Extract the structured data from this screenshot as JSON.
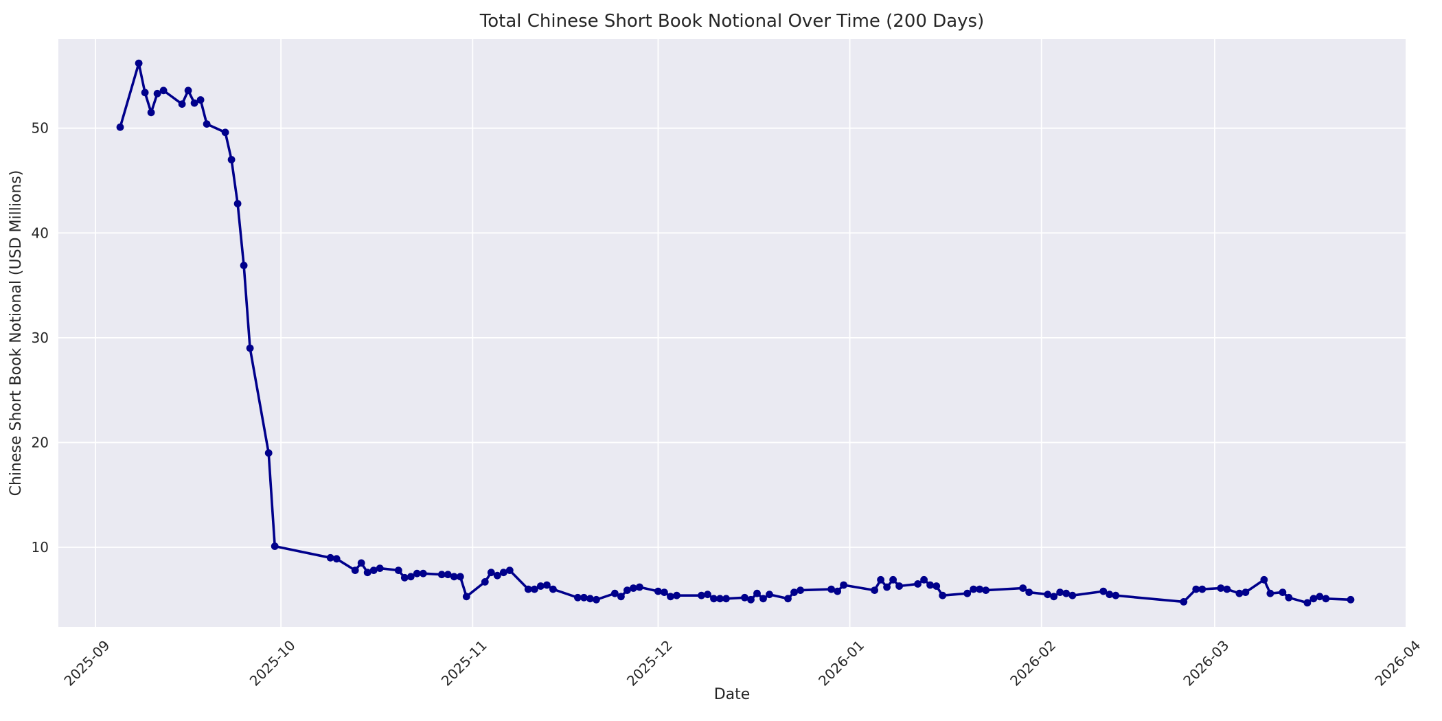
{
  "chart_data": {
    "type": "line",
    "title": "Total Chinese Short Book Notional Over Time (200 Days)",
    "xlabel": "Date",
    "ylabel": "Chinese Short Book Notional (USD Millions)",
    "legend": "none",
    "grid": true,
    "style": "seaborn-darkgrid",
    "colors": {
      "figure_background": "#FFFFFF",
      "axes_background": "#EAEAF2",
      "grid_color": "#FFFFFF",
      "line_color": "#00008B",
      "text_color": "#262626"
    },
    "x_ticks": [
      {
        "label": "2025-09",
        "date": "2025-09-01"
      },
      {
        "label": "2025-10",
        "date": "2025-10-01"
      },
      {
        "label": "2025-11",
        "date": "2025-11-01"
      },
      {
        "label": "2025-12",
        "date": "2025-12-01"
      },
      {
        "label": "2026-01",
        "date": "2026-01-01"
      },
      {
        "label": "2026-02",
        "date": "2026-02-01"
      },
      {
        "label": "2026-03",
        "date": "2026-03-01"
      },
      {
        "label": "2026-04",
        "date": "2026-04-01"
      }
    ],
    "y_ticks": [
      10,
      20,
      30,
      40,
      50
    ],
    "ylim": [
      2.4,
      58.5
    ],
    "x_domain": [
      "2025-08-26",
      "2026-04-01"
    ],
    "marker": "circle",
    "points": [
      [
        "2025-09-05",
        50.1
      ],
      [
        "2025-09-08",
        56.2
      ],
      [
        "2025-09-09",
        53.4
      ],
      [
        "2025-09-10",
        51.5
      ],
      [
        "2025-09-11",
        53.3
      ],
      [
        "2025-09-12",
        53.6
      ],
      [
        "2025-09-15",
        52.3
      ],
      [
        "2025-09-16",
        53.6
      ],
      [
        "2025-09-17",
        52.4
      ],
      [
        "2025-09-18",
        52.7
      ],
      [
        "2025-09-19",
        50.4
      ],
      [
        "2025-09-22",
        49.6
      ],
      [
        "2025-09-23",
        47.0
      ],
      [
        "2025-09-24",
        42.8
      ],
      [
        "2025-09-25",
        36.9
      ],
      [
        "2025-09-26",
        29.0
      ],
      [
        "2025-09-29",
        19.0
      ],
      [
        "2025-09-30",
        10.1
      ],
      [
        "2025-10-09",
        9.0
      ],
      [
        "2025-10-10",
        8.9
      ],
      [
        "2025-10-13",
        7.8
      ],
      [
        "2025-10-14",
        8.5
      ],
      [
        "2025-10-15",
        7.6
      ],
      [
        "2025-10-16",
        7.8
      ],
      [
        "2025-10-17",
        8.0
      ],
      [
        "2025-10-20",
        7.8
      ],
      [
        "2025-10-21",
        7.1
      ],
      [
        "2025-10-22",
        7.2
      ],
      [
        "2025-10-23",
        7.5
      ],
      [
        "2025-10-24",
        7.5
      ],
      [
        "2025-10-27",
        7.4
      ],
      [
        "2025-10-28",
        7.4
      ],
      [
        "2025-10-29",
        7.2
      ],
      [
        "2025-10-30",
        7.2
      ],
      [
        "2025-10-31",
        5.3
      ],
      [
        "2025-11-03",
        6.7
      ],
      [
        "2025-11-04",
        7.6
      ],
      [
        "2025-11-05",
        7.3
      ],
      [
        "2025-11-06",
        7.6
      ],
      [
        "2025-11-07",
        7.8
      ],
      [
        "2025-11-10",
        6.0
      ],
      [
        "2025-11-11",
        6.0
      ],
      [
        "2025-11-12",
        6.3
      ],
      [
        "2025-11-13",
        6.4
      ],
      [
        "2025-11-14",
        6.0
      ],
      [
        "2025-11-18",
        5.2
      ],
      [
        "2025-11-19",
        5.2
      ],
      [
        "2025-11-20",
        5.1
      ],
      [
        "2025-11-21",
        5.0
      ],
      [
        "2025-11-24",
        5.6
      ],
      [
        "2025-11-25",
        5.3
      ],
      [
        "2025-11-26",
        5.9
      ],
      [
        "2025-11-27",
        6.1
      ],
      [
        "2025-11-28",
        6.2
      ],
      [
        "2025-12-01",
        5.8
      ],
      [
        "2025-12-02",
        5.7
      ],
      [
        "2025-12-03",
        5.3
      ],
      [
        "2025-12-04",
        5.4
      ],
      [
        "2025-12-08",
        5.4
      ],
      [
        "2025-12-09",
        5.5
      ],
      [
        "2025-12-10",
        5.1
      ],
      [
        "2025-12-11",
        5.1
      ],
      [
        "2025-12-12",
        5.1
      ],
      [
        "2025-12-15",
        5.2
      ],
      [
        "2025-12-16",
        5.0
      ],
      [
        "2025-12-17",
        5.6
      ],
      [
        "2025-12-18",
        5.1
      ],
      [
        "2025-12-19",
        5.5
      ],
      [
        "2025-12-22",
        5.1
      ],
      [
        "2025-12-23",
        5.7
      ],
      [
        "2025-12-24",
        5.9
      ],
      [
        "2025-12-29",
        6.0
      ],
      [
        "2025-12-30",
        5.8
      ],
      [
        "2025-12-31",
        6.4
      ],
      [
        "2026-01-05",
        5.9
      ],
      [
        "2026-01-06",
        6.9
      ],
      [
        "2026-01-07",
        6.2
      ],
      [
        "2026-01-08",
        6.9
      ],
      [
        "2026-01-09",
        6.3
      ],
      [
        "2026-01-12",
        6.5
      ],
      [
        "2026-01-13",
        6.9
      ],
      [
        "2026-01-14",
        6.4
      ],
      [
        "2026-01-15",
        6.3
      ],
      [
        "2026-01-16",
        5.4
      ],
      [
        "2026-01-20",
        5.6
      ],
      [
        "2026-01-21",
        6.0
      ],
      [
        "2026-01-22",
        6.0
      ],
      [
        "2026-01-23",
        5.9
      ],
      [
        "2026-01-29",
        6.1
      ],
      [
        "2026-01-30",
        5.7
      ],
      [
        "2026-02-02",
        5.5
      ],
      [
        "2026-02-03",
        5.3
      ],
      [
        "2026-02-04",
        5.7
      ],
      [
        "2026-02-05",
        5.6
      ],
      [
        "2026-02-06",
        5.4
      ],
      [
        "2026-02-11",
        5.8
      ],
      [
        "2026-02-12",
        5.5
      ],
      [
        "2026-02-13",
        5.4
      ],
      [
        "2026-02-24",
        4.8
      ],
      [
        "2026-02-26",
        6.0
      ],
      [
        "2026-02-27",
        6.0
      ],
      [
        "2026-03-02",
        6.1
      ],
      [
        "2026-03-03",
        6.0
      ],
      [
        "2026-03-05",
        5.6
      ],
      [
        "2026-03-06",
        5.7
      ],
      [
        "2026-03-09",
        6.9
      ],
      [
        "2026-03-10",
        5.6
      ],
      [
        "2026-03-12",
        5.7
      ],
      [
        "2026-03-13",
        5.2
      ],
      [
        "2026-03-16",
        4.7
      ],
      [
        "2026-03-17",
        5.1
      ],
      [
        "2026-03-18",
        5.3
      ],
      [
        "2026-03-19",
        5.1
      ],
      [
        "2026-03-23",
        5.0
      ]
    ]
  }
}
